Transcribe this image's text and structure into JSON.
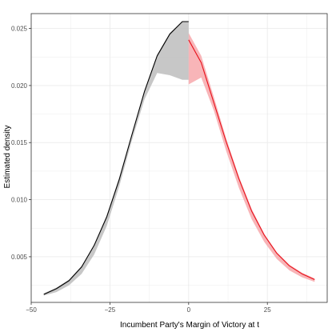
{
  "chart_data": {
    "type": "line",
    "xlabel": "Incumbent Party's Margin of Victory at t",
    "ylabel": "Estimated density",
    "xlim": [
      -50,
      44
    ],
    "ylim": [
      0.001,
      0.0263
    ],
    "x_ticks": [
      -50,
      -25,
      0,
      25
    ],
    "x_tick_labels": [
      "−50",
      "−25",
      "0",
      "25"
    ],
    "y_ticks": [
      0.005,
      0.01,
      0.015,
      0.02,
      0.025
    ],
    "y_tick_labels": [
      "0.005",
      "0.010",
      "0.015",
      "0.020",
      "0.025"
    ],
    "grid": true,
    "legend": "none",
    "colors": {
      "left": "#000000",
      "left_band": "#bdbdbd",
      "right": "#e8101a",
      "right_band": "#f7a8ac",
      "panel_border": "#333333",
      "grid": "#ebebeb"
    },
    "series": [
      {
        "color": "#000000",
        "x": [
          -46,
          -42,
          -38,
          -34,
          -30,
          -26,
          -22,
          -18,
          -14,
          -10,
          -6,
          -2,
          0
        ],
        "y": [
          0.0017,
          0.0022,
          0.0029,
          0.0041,
          0.006,
          0.0085,
          0.0118,
          0.0157,
          0.0195,
          0.0226,
          0.0245,
          0.0256,
          0.0256
        ],
        "lower": [
          0.0016,
          0.0019,
          0.0025,
          0.0035,
          0.0052,
          0.0077,
          0.0112,
          0.0152,
          0.0188,
          0.0211,
          0.0209,
          0.0205,
          0.0205
        ],
        "upper": [
          0.0018,
          0.0023,
          0.003,
          0.0042,
          0.006,
          0.0086,
          0.012,
          0.0158,
          0.0196,
          0.0227,
          0.0246,
          0.0256,
          0.0256
        ]
      },
      {
        "color": "#e8101a",
        "x": [
          0,
          4,
          8,
          12,
          16,
          20,
          24,
          28,
          32,
          36,
          40
        ],
        "y": [
          0.024,
          0.022,
          0.0185,
          0.015,
          0.0118,
          0.009,
          0.0069,
          0.0053,
          0.0042,
          0.0035,
          0.003
        ],
        "lower": [
          0.0201,
          0.0207,
          0.0178,
          0.0142,
          0.011,
          0.0083,
          0.0063,
          0.0048,
          0.0038,
          0.0032,
          0.0028
        ],
        "upper": [
          0.0246,
          0.0226,
          0.019,
          0.0153,
          0.012,
          0.0092,
          0.007,
          0.0054,
          0.0043,
          0.0036,
          0.0031
        ]
      }
    ]
  }
}
